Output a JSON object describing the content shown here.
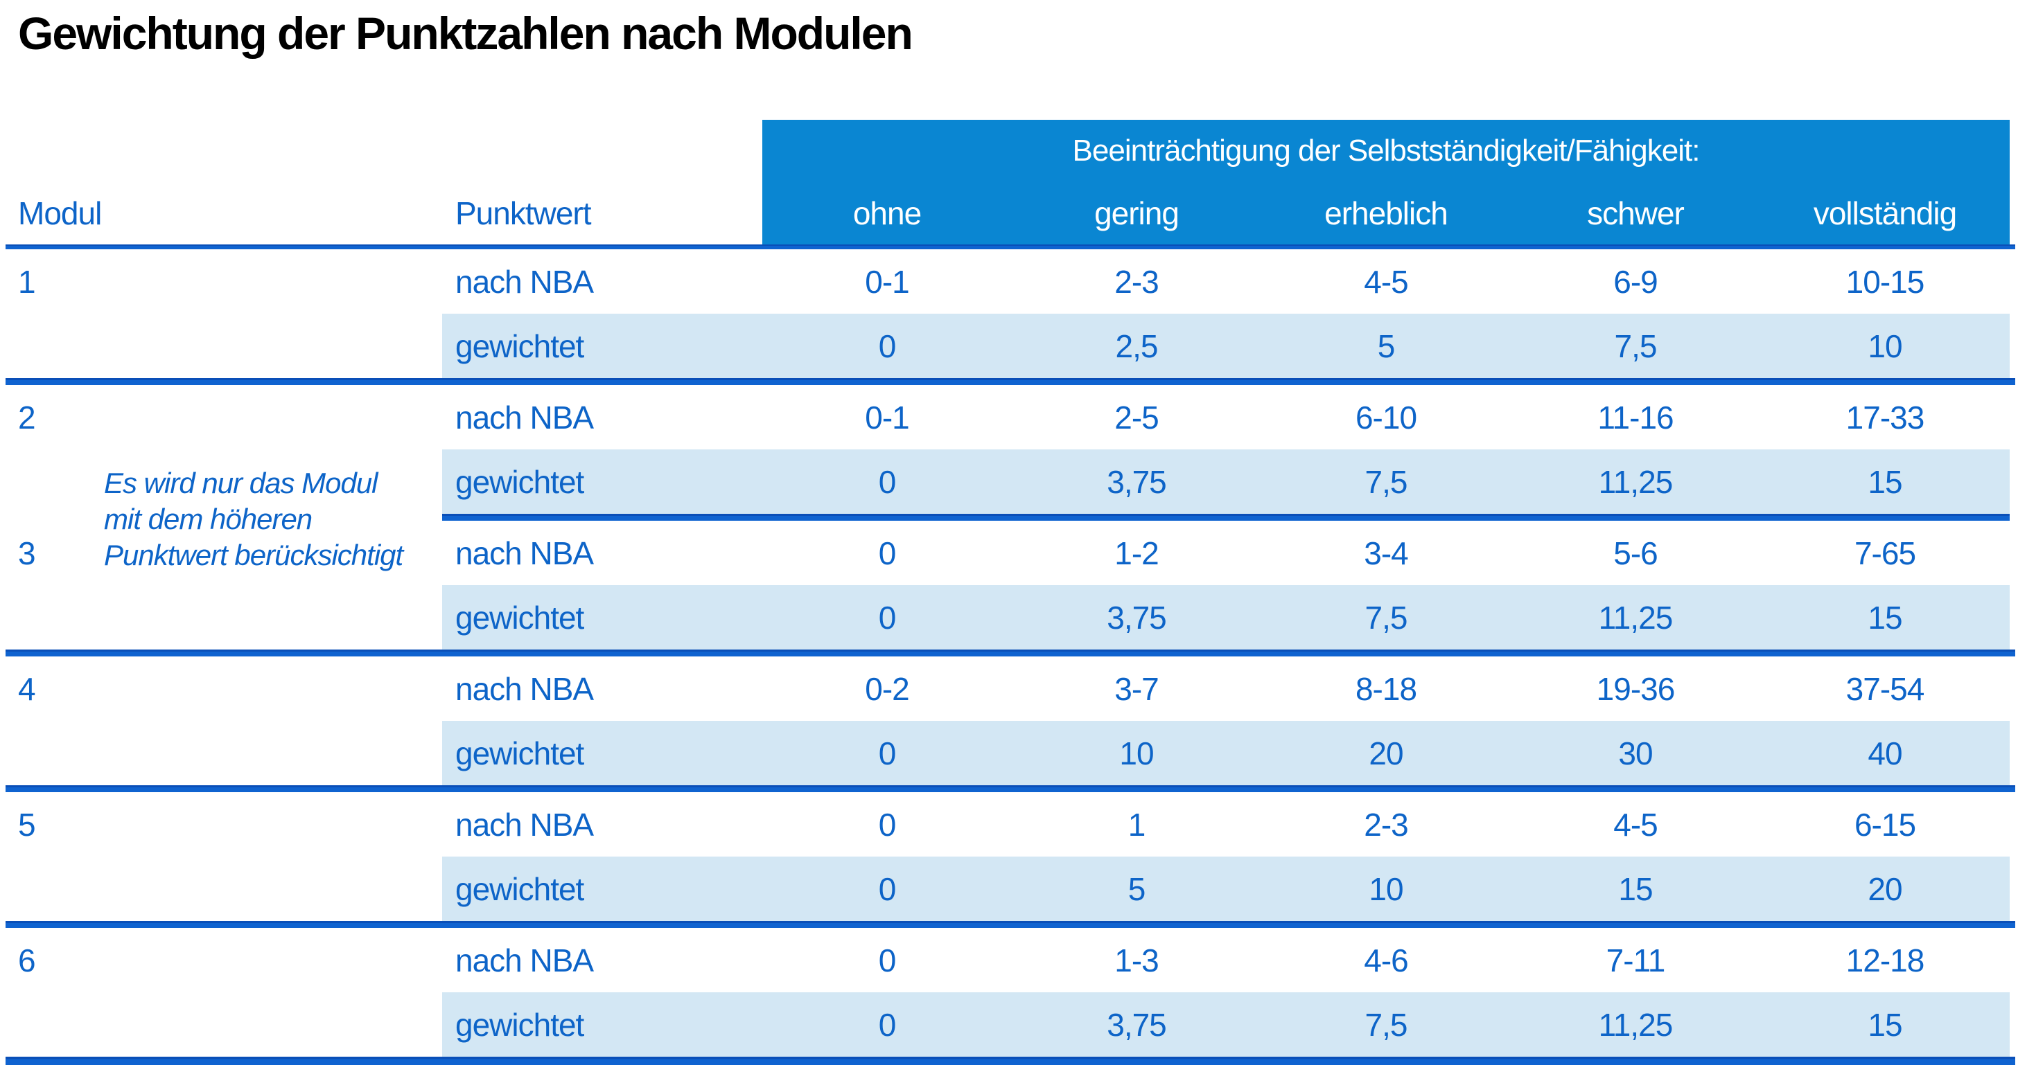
{
  "title": "Gewichtung der Punktzahlen nach Modulen",
  "header": {
    "modul": "Modul",
    "punktwert": "Punktwert",
    "band_title": "Beeinträchtigung der Selbstständigkeit/Fähigkeit:",
    "severity_levels": [
      "ohne",
      "gering",
      "erheblich",
      "schwer",
      "vollständig"
    ]
  },
  "row_labels": {
    "nba": "nach NBA",
    "weighted": "gewichtet"
  },
  "note": {
    "lines": [
      "Es wird nur das Modul",
      "mit dem höheren",
      "Punktwert berücksichtigt"
    ]
  },
  "modules": [
    {
      "number": "1",
      "nba": [
        "0-1",
        "2-3",
        "4-5",
        "6-9",
        "10-15"
      ],
      "weighted": [
        "0",
        "2,5",
        "5",
        "7,5",
        "10"
      ]
    },
    {
      "number": "2",
      "nba": [
        "0-1",
        "2-5",
        "6-10",
        "11-16",
        "17-33"
      ],
      "weighted": [
        "0",
        "3,75",
        "7,5",
        "11,25",
        "15"
      ]
    },
    {
      "number": "3",
      "nba": [
        "0",
        "1-2",
        "3-4",
        "5-6",
        "7-65"
      ],
      "weighted": [
        "0",
        "3,75",
        "7,5",
        "11,25",
        "15"
      ]
    },
    {
      "number": "4",
      "nba": [
        "0-2",
        "3-7",
        "8-18",
        "19-36",
        "37-54"
      ],
      "weighted": [
        "0",
        "10",
        "20",
        "30",
        "40"
      ]
    },
    {
      "number": "5",
      "nba": [
        "0",
        "1",
        "2-3",
        "4-5",
        "6-15"
      ],
      "weighted": [
        "0",
        "5",
        "10",
        "15",
        "20"
      ]
    },
    {
      "number": "6",
      "nba": [
        "0",
        "1-3",
        "4-6",
        "7-11",
        "12-18"
      ],
      "weighted": [
        "0",
        "3,75",
        "7,5",
        "11,25",
        "15"
      ]
    }
  ],
  "colors": {
    "band_background": "#0a86d2",
    "band_text": "#ffffff",
    "row_shade": "#d3e7f4",
    "rule_blue": "#0f63d0",
    "text_blue": "#0d64c8",
    "title_text": "#000000"
  }
}
